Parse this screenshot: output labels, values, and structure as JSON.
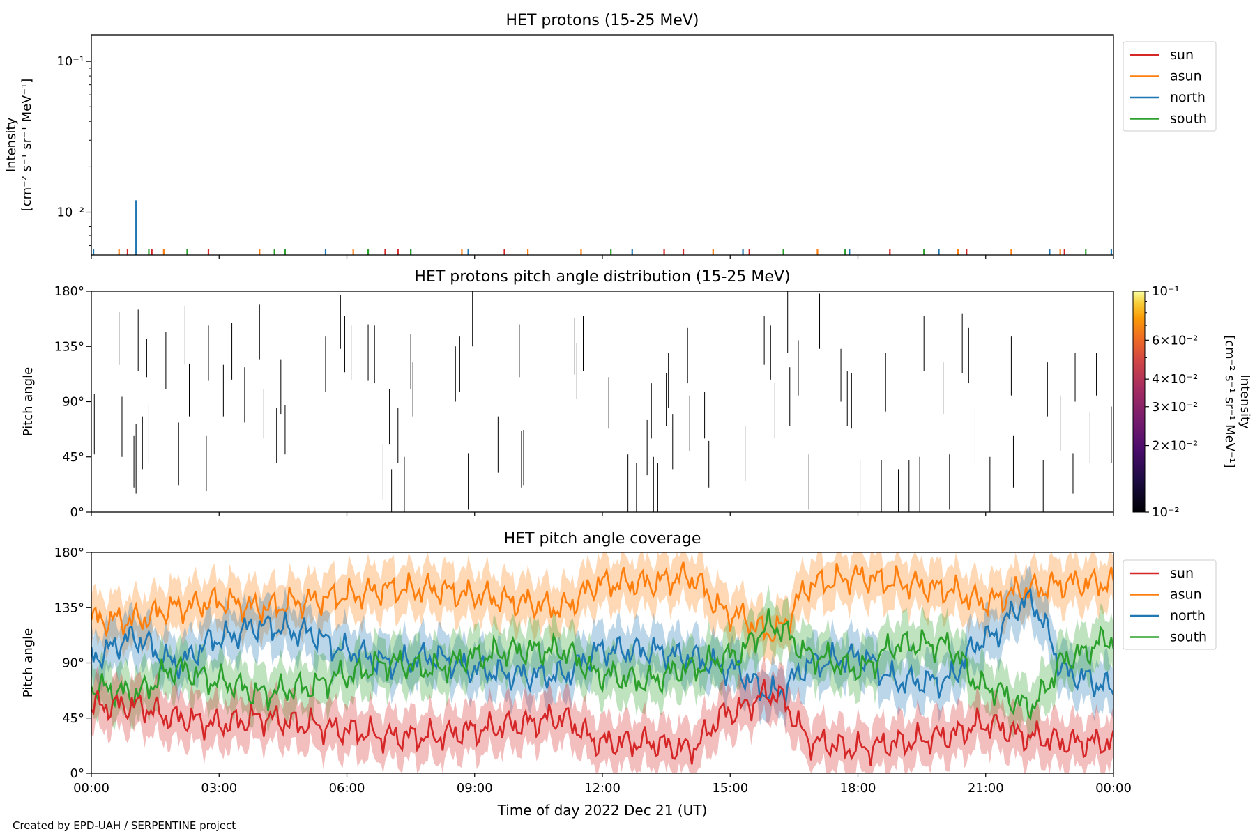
{
  "colors": {
    "sun": "#d62728",
    "asun": "#ff7f0e",
    "north": "#1f77b4",
    "south": "#2ca02c"
  },
  "footer": "Created by EPD-UAH / SERPENTINE project",
  "chart_data": [
    {
      "type": "line",
      "title": "HET protons (15-25 MeV)",
      "ylabel": [
        "Intensity",
        "[cm⁻² s⁻¹ sr⁻¹ MeV⁻¹]"
      ],
      "yscale": "log",
      "ylim": [
        0.0052,
        0.15
      ],
      "ytick_labels": [
        "10⁻²",
        "10⁻¹"
      ],
      "legend_position": "outside-right",
      "series": [
        {
          "name": "sun",
          "spikes": [
            {
              "t": 0.85,
              "v": 0.0057
            },
            {
              "t": 1.42,
              "v": 0.0057
            },
            {
              "t": 2.75,
              "v": 0.0057
            },
            {
              "t": 6.9,
              "v": 0.0057
            },
            {
              "t": 7.2,
              "v": 0.0057
            },
            {
              "t": 9.7,
              "v": 0.0057
            },
            {
              "t": 13.45,
              "v": 0.0057
            },
            {
              "t": 13.9,
              "v": 0.0057
            },
            {
              "t": 15.45,
              "v": 0.0057
            },
            {
              "t": 18.75,
              "v": 0.0057
            },
            {
              "t": 20.55,
              "v": 0.0057
            },
            {
              "t": 22.85,
              "v": 0.0057
            }
          ]
        },
        {
          "name": "asun",
          "spikes": [
            {
              "t": 0.65,
              "v": 0.0057
            },
            {
              "t": 1.7,
              "v": 0.0057
            },
            {
              "t": 3.95,
              "v": 0.0057
            },
            {
              "t": 6.15,
              "v": 0.0057
            },
            {
              "t": 8.7,
              "v": 0.0057
            },
            {
              "t": 10.25,
              "v": 0.0057
            },
            {
              "t": 11.5,
              "v": 0.0057
            },
            {
              "t": 14.6,
              "v": 0.0057
            },
            {
              "t": 17.05,
              "v": 0.0057
            },
            {
              "t": 20.35,
              "v": 0.0057
            },
            {
              "t": 21.6,
              "v": 0.0057
            },
            {
              "t": 22.75,
              "v": 0.0057
            }
          ]
        },
        {
          "name": "north",
          "spikes": [
            {
              "t": 0.05,
              "v": 0.0057
            },
            {
              "t": 1.05,
              "v": 0.012
            },
            {
              "t": 5.5,
              "v": 0.0057
            },
            {
              "t": 7.5,
              "v": 0.0057
            },
            {
              "t": 8.85,
              "v": 0.0057
            },
            {
              "t": 12.7,
              "v": 0.0057
            },
            {
              "t": 15.3,
              "v": 0.0057
            },
            {
              "t": 17.8,
              "v": 0.0057
            },
            {
              "t": 19.9,
              "v": 0.0057
            },
            {
              "t": 22.5,
              "v": 0.0057
            },
            {
              "t": 23.95,
              "v": 0.0057
            }
          ]
        },
        {
          "name": "south",
          "spikes": [
            {
              "t": 1.35,
              "v": 0.0057
            },
            {
              "t": 2.25,
              "v": 0.0057
            },
            {
              "t": 4.3,
              "v": 0.0057
            },
            {
              "t": 4.55,
              "v": 0.0057
            },
            {
              "t": 6.5,
              "v": 0.0057
            },
            {
              "t": 7.5,
              "v": 0.0057
            },
            {
              "t": 12.2,
              "v": 0.0057
            },
            {
              "t": 16.25,
              "v": 0.0057
            },
            {
              "t": 17.7,
              "v": 0.0057
            },
            {
              "t": 19.55,
              "v": 0.0057
            },
            {
              "t": 23.35,
              "v": 0.0057
            }
          ]
        }
      ]
    },
    {
      "type": "heatmap",
      "title": "HET protons pitch angle distribution (15-25 MeV)",
      "ylabel": "Pitch angle",
      "ylim": [
        0,
        180
      ],
      "ytick_labels": [
        "0°",
        "45°",
        "90°",
        "135°",
        "180°"
      ],
      "colorbar": {
        "label": [
          "Intensity",
          "[cm⁻² s⁻¹ sr⁻¹ MeV⁻¹]"
        ],
        "scale": "log",
        "range": [
          0.01,
          0.1
        ],
        "tick_labels": [
          "10⁻²",
          "2×10⁻²",
          "3×10⁻²",
          "4×10⁻²",
          "6×10⁻²",
          "10⁻¹"
        ]
      },
      "segments": [
        {
          "t": 0.07,
          "pa_min": 47,
          "pa_max": 96
        },
        {
          "t": 0.65,
          "pa_min": 120,
          "pa_max": 163
        },
        {
          "t": 0.72,
          "pa_min": 45,
          "pa_max": 94
        },
        {
          "t": 1.0,
          "pa_min": 20,
          "pa_max": 62
        },
        {
          "t": 1.05,
          "pa_min": 15,
          "pa_max": 72
        },
        {
          "t": 1.1,
          "pa_min": 115,
          "pa_max": 165
        },
        {
          "t": 1.2,
          "pa_min": 35,
          "pa_max": 78
        },
        {
          "t": 1.3,
          "pa_min": 110,
          "pa_max": 141
        },
        {
          "t": 1.35,
          "pa_min": 40,
          "pa_max": 88
        },
        {
          "t": 1.75,
          "pa_min": 100,
          "pa_max": 147
        },
        {
          "t": 2.05,
          "pa_min": 22,
          "pa_max": 73
        },
        {
          "t": 2.2,
          "pa_min": 120,
          "pa_max": 168
        },
        {
          "t": 2.3,
          "pa_min": 78,
          "pa_max": 121
        },
        {
          "t": 2.7,
          "pa_min": 17,
          "pa_max": 62
        },
        {
          "t": 2.75,
          "pa_min": 107,
          "pa_max": 152
        },
        {
          "t": 3.1,
          "pa_min": 78,
          "pa_max": 120
        },
        {
          "t": 3.3,
          "pa_min": 108,
          "pa_max": 154
        },
        {
          "t": 3.6,
          "pa_min": 73,
          "pa_max": 118
        },
        {
          "t": 3.95,
          "pa_min": 124,
          "pa_max": 169
        },
        {
          "t": 4.05,
          "pa_min": 60,
          "pa_max": 100
        },
        {
          "t": 4.35,
          "pa_min": 40,
          "pa_max": 85
        },
        {
          "t": 4.45,
          "pa_min": 80,
          "pa_max": 124
        },
        {
          "t": 4.55,
          "pa_min": 47,
          "pa_max": 87
        },
        {
          "t": 5.5,
          "pa_min": 98,
          "pa_max": 143
        },
        {
          "t": 5.85,
          "pa_min": 133,
          "pa_max": 177
        },
        {
          "t": 5.95,
          "pa_min": 114,
          "pa_max": 160
        },
        {
          "t": 6.1,
          "pa_min": 108,
          "pa_max": 152
        },
        {
          "t": 6.5,
          "pa_min": 107,
          "pa_max": 153
        },
        {
          "t": 6.65,
          "pa_min": 105,
          "pa_max": 152
        },
        {
          "t": 6.85,
          "pa_min": 10,
          "pa_max": 55
        },
        {
          "t": 7.0,
          "pa_min": 55,
          "pa_max": 100
        },
        {
          "t": 7.05,
          "pa_min": 0,
          "pa_max": 35
        },
        {
          "t": 7.2,
          "pa_min": 40,
          "pa_max": 85
        },
        {
          "t": 7.35,
          "pa_min": 0,
          "pa_max": 45
        },
        {
          "t": 7.5,
          "pa_min": 100,
          "pa_max": 145
        },
        {
          "t": 7.55,
          "pa_min": 78,
          "pa_max": 122
        },
        {
          "t": 8.55,
          "pa_min": 90,
          "pa_max": 135
        },
        {
          "t": 8.65,
          "pa_min": 98,
          "pa_max": 143
        },
        {
          "t": 8.85,
          "pa_min": 2,
          "pa_max": 48
        },
        {
          "t": 8.95,
          "pa_min": 135,
          "pa_max": 180
        },
        {
          "t": 9.55,
          "pa_min": 32,
          "pa_max": 78
        },
        {
          "t": 10.05,
          "pa_min": 110,
          "pa_max": 153
        },
        {
          "t": 10.1,
          "pa_min": 20,
          "pa_max": 66
        },
        {
          "t": 10.15,
          "pa_min": 22,
          "pa_max": 67
        },
        {
          "t": 11.35,
          "pa_min": 112,
          "pa_max": 158
        },
        {
          "t": 11.4,
          "pa_min": 92,
          "pa_max": 138
        },
        {
          "t": 11.55,
          "pa_min": 115,
          "pa_max": 160
        },
        {
          "t": 12.15,
          "pa_min": 68,
          "pa_max": 110
        },
        {
          "t": 12.6,
          "pa_min": 0,
          "pa_max": 47
        },
        {
          "t": 12.8,
          "pa_min": 0,
          "pa_max": 40
        },
        {
          "t": 13.05,
          "pa_min": 30,
          "pa_max": 75
        },
        {
          "t": 13.15,
          "pa_min": 60,
          "pa_max": 105
        },
        {
          "t": 13.2,
          "pa_min": 0,
          "pa_max": 45
        },
        {
          "t": 13.3,
          "pa_min": 0,
          "pa_max": 40
        },
        {
          "t": 13.5,
          "pa_min": 70,
          "pa_max": 113
        },
        {
          "t": 13.55,
          "pa_min": 85,
          "pa_max": 130
        },
        {
          "t": 13.65,
          "pa_min": 35,
          "pa_max": 80
        },
        {
          "t": 14.0,
          "pa_min": 105,
          "pa_max": 150
        },
        {
          "t": 14.05,
          "pa_min": 50,
          "pa_max": 95
        },
        {
          "t": 14.4,
          "pa_min": 60,
          "pa_max": 98
        },
        {
          "t": 14.5,
          "pa_min": 20,
          "pa_max": 58
        },
        {
          "t": 15.35,
          "pa_min": 25,
          "pa_max": 70
        },
        {
          "t": 15.8,
          "pa_min": 120,
          "pa_max": 160
        },
        {
          "t": 15.95,
          "pa_min": 108,
          "pa_max": 152
        },
        {
          "t": 16.05,
          "pa_min": 60,
          "pa_max": 105
        },
        {
          "t": 16.35,
          "pa_min": 130,
          "pa_max": 180
        },
        {
          "t": 16.4,
          "pa_min": 70,
          "pa_max": 118
        },
        {
          "t": 16.6,
          "pa_min": 95,
          "pa_max": 140
        },
        {
          "t": 16.85,
          "pa_min": 2,
          "pa_max": 47
        },
        {
          "t": 17.1,
          "pa_min": 133,
          "pa_max": 178
        },
        {
          "t": 17.6,
          "pa_min": 90,
          "pa_max": 133
        },
        {
          "t": 17.75,
          "pa_min": 70,
          "pa_max": 115
        },
        {
          "t": 17.85,
          "pa_min": 68,
          "pa_max": 113
        },
        {
          "t": 18.0,
          "pa_min": 140,
          "pa_max": 180
        },
        {
          "t": 18.05,
          "pa_min": 0,
          "pa_max": 42
        },
        {
          "t": 18.55,
          "pa_min": 0,
          "pa_max": 42
        },
        {
          "t": 18.65,
          "pa_min": 82,
          "pa_max": 130
        },
        {
          "t": 18.95,
          "pa_min": 0,
          "pa_max": 35
        },
        {
          "t": 19.2,
          "pa_min": 0,
          "pa_max": 42
        },
        {
          "t": 19.45,
          "pa_min": 0,
          "pa_max": 45
        },
        {
          "t": 19.55,
          "pa_min": 115,
          "pa_max": 160
        },
        {
          "t": 20.0,
          "pa_min": 80,
          "pa_max": 122
        },
        {
          "t": 20.15,
          "pa_min": 2,
          "pa_max": 47
        },
        {
          "t": 20.45,
          "pa_min": 113,
          "pa_max": 162
        },
        {
          "t": 20.6,
          "pa_min": 105,
          "pa_max": 150
        },
        {
          "t": 20.75,
          "pa_min": 40,
          "pa_max": 86
        },
        {
          "t": 21.1,
          "pa_min": 0,
          "pa_max": 45
        },
        {
          "t": 21.6,
          "pa_min": 95,
          "pa_max": 143
        },
        {
          "t": 21.65,
          "pa_min": 20,
          "pa_max": 62
        },
        {
          "t": 22.35,
          "pa_min": 0,
          "pa_max": 42
        },
        {
          "t": 22.45,
          "pa_min": 78,
          "pa_max": 122
        },
        {
          "t": 22.75,
          "pa_min": 50,
          "pa_max": 95
        },
        {
          "t": 23.05,
          "pa_min": 15,
          "pa_max": 48
        },
        {
          "t": 23.1,
          "pa_min": 90,
          "pa_max": 130
        },
        {
          "t": 23.45,
          "pa_min": 40,
          "pa_max": 82
        },
        {
          "t": 23.6,
          "pa_min": 95,
          "pa_max": 130
        },
        {
          "t": 23.95,
          "pa_min": 40,
          "pa_max": 86
        }
      ]
    },
    {
      "type": "line",
      "title": "HET pitch angle coverage",
      "ylabel": "Pitch angle",
      "xlabel": "Time of day 2022 Dec 21 (UT)",
      "xlim": [
        0,
        24
      ],
      "xtick_labels": [
        "00:00",
        "03:00",
        "06:00",
        "09:00",
        "12:00",
        "15:00",
        "18:00",
        "21:00",
        "00:00"
      ],
      "ylim": [
        0,
        180
      ],
      "ytick_labels": [
        "0°",
        "45°",
        "90°",
        "135°",
        "180°"
      ],
      "legend_position": "outside-right",
      "shaded_band_halfwidth": 20,
      "x": [
        0,
        1,
        2,
        3,
        4,
        5,
        6,
        7,
        8,
        9,
        10,
        11,
        12,
        13,
        14,
        15,
        16,
        17,
        18,
        19,
        20,
        21,
        22,
        23,
        24
      ],
      "series": [
        {
          "name": "sun",
          "values": [
            55,
            55,
            45,
            40,
            45,
            40,
            35,
            30,
            30,
            35,
            40,
            45,
            25,
            25,
            20,
            50,
            65,
            25,
            20,
            25,
            30,
            40,
            30,
            25,
            25
          ]
        },
        {
          "name": "asun",
          "values": [
            125,
            125,
            135,
            140,
            135,
            140,
            145,
            150,
            150,
            145,
            140,
            135,
            155,
            155,
            160,
            130,
            115,
            155,
            160,
            155,
            150,
            140,
            150,
            155,
            155
          ]
        },
        {
          "name": "north",
          "values": [
            95,
            110,
            90,
            110,
            120,
            115,
            100,
            90,
            95,
            85,
            80,
            80,
            100,
            100,
            95,
            85,
            65,
            90,
            95,
            75,
            75,
            110,
            140,
            80,
            70
          ]
        },
        {
          "name": "south",
          "values": [
            70,
            65,
            85,
            75,
            65,
            70,
            80,
            90,
            85,
            95,
            100,
            100,
            80,
            75,
            85,
            95,
            120,
            95,
            85,
            105,
            105,
            70,
            55,
            95,
            110
          ]
        }
      ]
    }
  ]
}
